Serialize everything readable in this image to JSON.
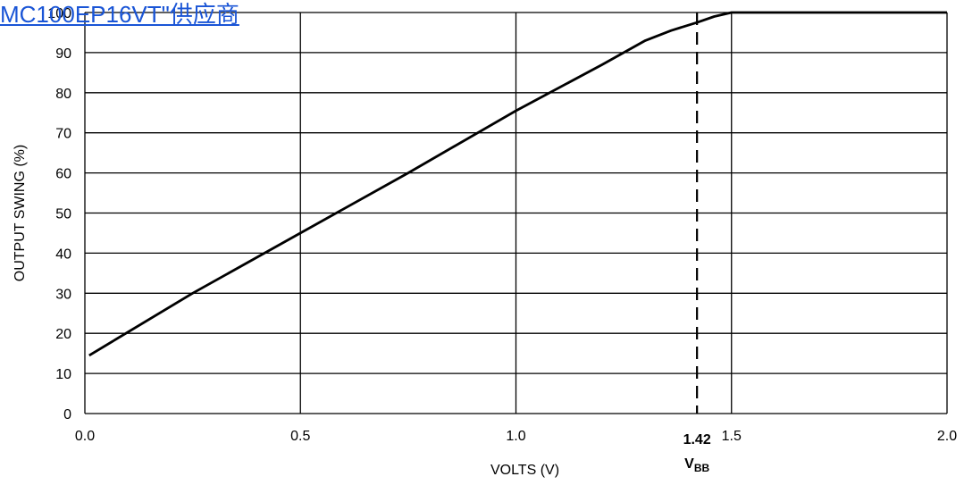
{
  "overlay_link": {
    "text": "MC100EP16VT\"供应商",
    "color": "#1a55d6"
  },
  "chart_data": {
    "type": "line",
    "title": "",
    "xlabel": "VOLTS (V)",
    "ylabel": "OUTPUT SWING (%)",
    "xlim": [
      0.0,
      2.0
    ],
    "ylim": [
      0,
      100
    ],
    "x_ticks": [
      0.0,
      0.5,
      1.0,
      1.5,
      2.0
    ],
    "x_tick_labels": [
      "0.0",
      "0.5",
      "1.0",
      "1.5",
      "2.0"
    ],
    "y_ticks": [
      0,
      10,
      20,
      30,
      40,
      50,
      60,
      70,
      80,
      90,
      100
    ],
    "y_tick_labels": [
      "0",
      "10",
      "20",
      "30",
      "40",
      "50",
      "60",
      "70",
      "80",
      "90",
      "100"
    ],
    "grid": true,
    "series": [
      {
        "color": "#000000",
        "x": [
          0.01,
          0.25,
          0.5,
          0.75,
          1.0,
          1.2,
          1.3,
          1.36,
          1.42,
          1.46,
          1.5,
          2.0
        ],
        "y": [
          14.5,
          30,
          45,
          60,
          75.5,
          87,
          93,
          95.5,
          97.5,
          99,
          100,
          100
        ]
      }
    ],
    "reference_line": {
      "x": 1.42,
      "style": "dashed",
      "value_label": "1.42",
      "name_main": "V",
      "name_sub": "BB"
    }
  }
}
